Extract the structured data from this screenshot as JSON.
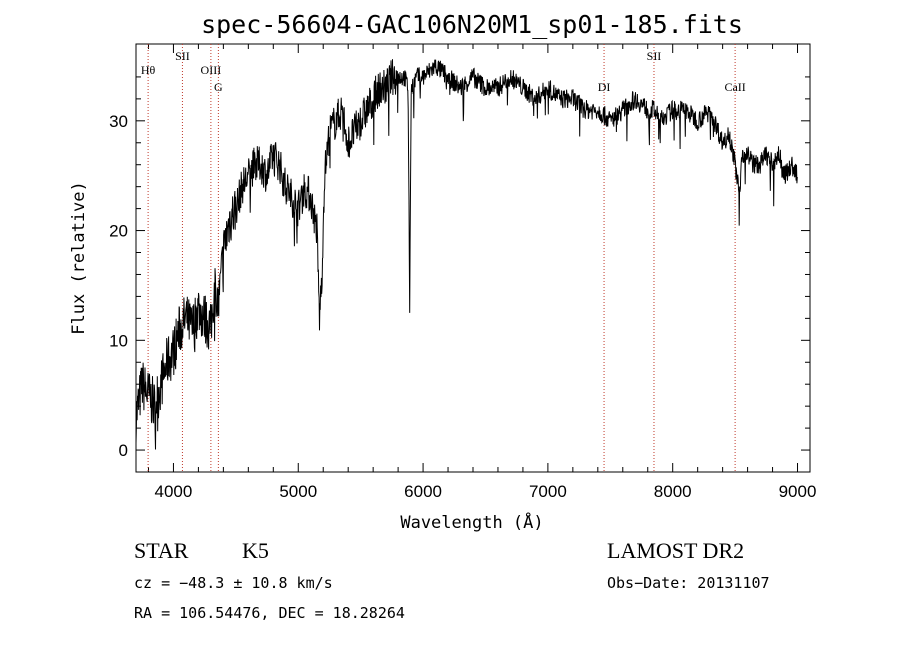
{
  "chart_data": {
    "type": "line",
    "title": "spec-56604-GAC106N20M1_sp01-185.fits",
    "xlabel": "Wavelength (Å)",
    "ylabel": "Flux (relative)",
    "xlim": [
      3700,
      9100
    ],
    "ylim": [
      -2,
      37
    ],
    "xticks": [
      4000,
      5000,
      6000,
      7000,
      8000,
      9000
    ],
    "yticks": [
      0,
      10,
      20,
      30
    ],
    "grid": false,
    "line_color": "#000000",
    "marker_color": "#c0392b",
    "spectrum": {
      "x": [
        3700,
        3750,
        3800,
        3850,
        3900,
        3950,
        4000,
        4050,
        4100,
        4150,
        4200,
        4250,
        4300,
        4330,
        4360,
        4400,
        4450,
        4500,
        4550,
        4600,
        4650,
        4700,
        4750,
        4800,
        4850,
        4900,
        4950,
        5000,
        5050,
        5100,
        5150,
        5170,
        5190,
        5210,
        5250,
        5300,
        5350,
        5400,
        5450,
        5500,
        5550,
        5600,
        5650,
        5700,
        5750,
        5800,
        5850,
        5880,
        5893,
        5905,
        5950,
        6000,
        6100,
        6200,
        6300,
        6400,
        6500,
        6600,
        6700,
        6800,
        6900,
        7000,
        7100,
        7200,
        7300,
        7400,
        7500,
        7600,
        7700,
        7800,
        7850,
        7900,
        8000,
        8100,
        8200,
        8300,
        8400,
        8450,
        8500,
        8540,
        8550,
        8600,
        8650,
        8700,
        8750,
        8800,
        8850,
        8900,
        8950,
        9000
      ],
      "y": [
        3,
        6,
        5,
        4,
        6,
        8,
        9,
        11,
        12,
        11,
        13,
        12,
        11,
        15,
        13,
        18,
        21,
        22,
        24,
        25,
        26,
        26,
        25,
        27,
        26,
        24,
        23,
        22,
        24,
        23,
        20,
        12,
        16,
        25,
        29,
        30,
        31,
        28,
        29,
        30,
        31,
        32,
        33,
        33,
        34,
        34,
        34,
        33,
        13,
        33,
        34,
        34,
        35,
        34,
        33,
        34,
        33,
        33,
        34,
        33,
        32,
        33,
        32,
        32,
        31,
        31,
        30,
        31,
        32,
        31,
        31,
        30,
        31,
        31,
        30,
        31,
        28,
        29,
        26,
        23,
        27,
        27,
        26,
        26,
        27,
        26,
        27,
        25,
        26,
        25
      ]
    },
    "line_markers": [
      {
        "label": "Hθ",
        "x": 3797
      },
      {
        "label": "SII",
        "x": 4072
      },
      {
        "label": "OIII",
        "x": 4300
      },
      {
        "label": "G",
        "x": 4360
      },
      {
        "label": "DI",
        "x": 7450
      },
      {
        "label": "SII",
        "x": 7850
      },
      {
        "label": "CaII",
        "x": 8500
      }
    ]
  },
  "info": {
    "class_label": "STAR",
    "subclass": "K5",
    "survey": "LAMOST DR2",
    "cz": "cz = −48.3 ± 10.8 km/s",
    "obs_date": "Obs−Date: 20131107",
    "coords": "RA = 106.54476, DEC =  18.28264"
  }
}
